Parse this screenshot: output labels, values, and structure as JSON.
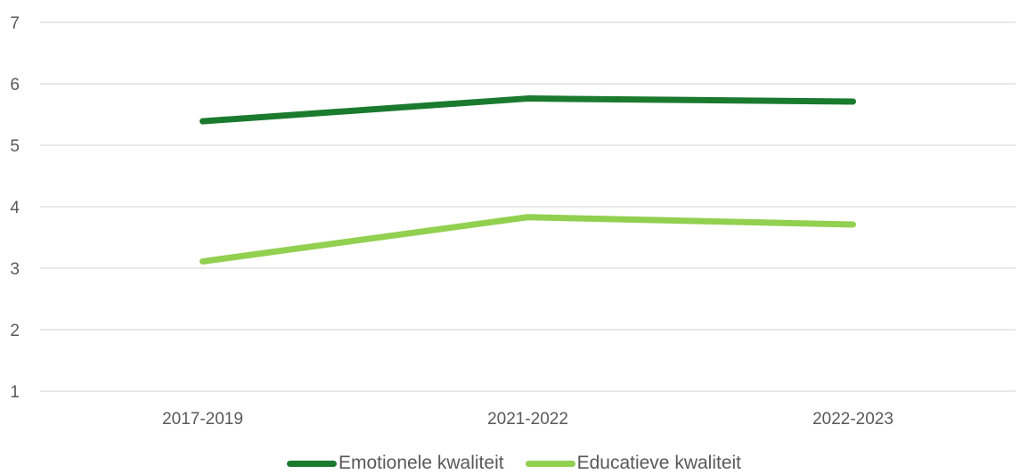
{
  "chart_data": {
    "type": "line",
    "title": "",
    "xlabel": "",
    "ylabel": "",
    "categories": [
      "2017-2019",
      "2021-2022",
      "2022-2023"
    ],
    "yticks": [
      "1",
      "2",
      "3",
      "4",
      "5",
      "6",
      "7"
    ],
    "ylim": [
      1,
      7
    ],
    "grid": true,
    "legend_position": "bottom",
    "series": [
      {
        "name": "Emotionele kwaliteit",
        "values": [
          5.39,
          5.76,
          5.71
        ],
        "color": "#1a7a2e"
      },
      {
        "name": "Educatieve kwaliteit",
        "values": [
          3.11,
          3.83,
          3.71
        ],
        "color": "#92d050"
      }
    ]
  }
}
